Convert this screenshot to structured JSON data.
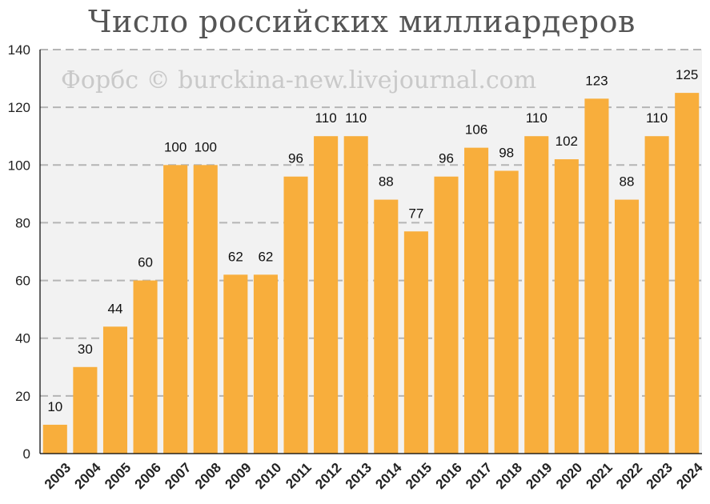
{
  "chart_data": {
    "type": "bar",
    "title": "Число российских миллиардеров",
    "watermark": "Форбс © burckina-new.livejournal.com",
    "categories": [
      "2003",
      "2004",
      "2005",
      "2006",
      "2007",
      "2008",
      "2009",
      "2010",
      "2011",
      "2012",
      "2013",
      "2014",
      "2015",
      "2016",
      "2017",
      "2018",
      "2019",
      "2020",
      "2021",
      "2022",
      "2023",
      "2024"
    ],
    "values": [
      10,
      30,
      44,
      60,
      100,
      100,
      62,
      62,
      96,
      110,
      110,
      88,
      77,
      96,
      106,
      98,
      110,
      102,
      123,
      88,
      110,
      125
    ],
    "ylim": [
      0,
      140
    ],
    "yticks": [
      0,
      20,
      40,
      60,
      80,
      100,
      120,
      140
    ],
    "grid": true,
    "xlabel": "",
    "ylabel": "",
    "colors": {
      "bar": "#f8ae3c",
      "plot_background": "#f2f2f2",
      "grid": "#b5b5b5"
    }
  }
}
